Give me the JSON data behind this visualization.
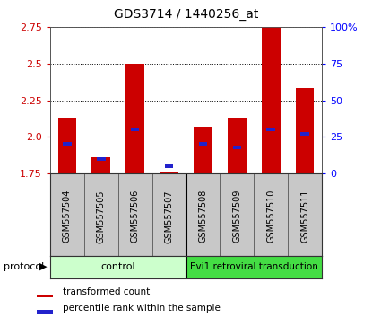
{
  "title": "GDS3714 / 1440256_at",
  "samples": [
    "GSM557504",
    "GSM557505",
    "GSM557506",
    "GSM557507",
    "GSM557508",
    "GSM557509",
    "GSM557510",
    "GSM557511"
  ],
  "red_values": [
    2.13,
    1.86,
    2.5,
    1.755,
    2.07,
    2.13,
    2.82,
    2.33
  ],
  "blue_values": [
    20,
    10,
    30,
    5,
    20,
    18,
    30,
    27
  ],
  "ylim_left": [
    1.75,
    2.75
  ],
  "ylim_right": [
    0,
    100
  ],
  "yticks_left": [
    1.75,
    2.0,
    2.25,
    2.5,
    2.75
  ],
  "yticks_right": [
    0,
    25,
    50,
    75,
    100
  ],
  "ytick_labels_right": [
    "0",
    "25",
    "50",
    "75",
    "100%"
  ],
  "bar_bottom": 1.75,
  "red_color": "#cc0000",
  "blue_color": "#2222cc",
  "bg_plot": "#ffffff",
  "bg_sample_labels": "#c8c8c8",
  "control_label": "control",
  "treatment_label": "Evi1 retroviral transduction",
  "control_color": "#ccffcc",
  "treatment_color": "#44dd44",
  "protocol_label": "protocol",
  "legend_red": "transformed count",
  "legend_blue": "percentile rank within the sample",
  "n_control": 4,
  "bar_width": 0.55,
  "blue_bar_width": 0.25,
  "blue_bar_height": 0.025
}
